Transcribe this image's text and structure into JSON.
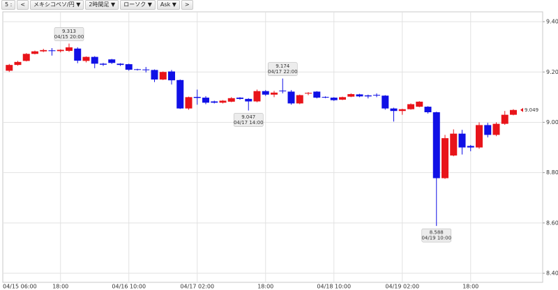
{
  "toolbar": {
    "items": [
      "5 :",
      "<",
      "メキシコペソ/円 ▼",
      "2時間足 ▼",
      "ローソク ▼",
      "Ask ▼",
      ">"
    ]
  },
  "chart_data": {
    "type": "candlestick",
    "categories": [
      "04/15 06:00",
      null,
      null,
      null,
      null,
      null,
      "18:00",
      null,
      null,
      null,
      null,
      null,
      null,
      null,
      "04/16 10:00",
      null,
      null,
      null,
      null,
      null,
      null,
      null,
      "04/17 02:00",
      null,
      null,
      null,
      null,
      null,
      null,
      null,
      "18:00",
      null,
      null,
      null,
      null,
      null,
      null,
      null,
      "04/18 10:00",
      null,
      null,
      null,
      null,
      null,
      null,
      null,
      "04/19 02:00",
      null,
      null,
      null,
      null,
      null,
      null,
      null,
      "18:00",
      null,
      null,
      null,
      null,
      null
    ],
    "open": [
      9.205,
      9.228,
      9.244,
      9.272,
      9.282,
      9.286,
      9.283,
      9.284,
      9.293,
      9.244,
      9.26,
      9.233,
      9.25,
      9.233,
      9.231,
      9.211,
      9.21,
      9.208,
      9.17,
      9.202,
      9.168,
      9.055,
      9.101,
      9.098,
      9.083,
      9.078,
      9.082,
      9.098,
      9.093,
      9.083,
      9.124,
      9.11,
      9.126,
      9.122,
      9.075,
      9.114,
      9.122,
      9.101,
      9.098,
      9.09,
      9.102,
      9.111,
      9.107,
      9.109,
      9.106,
      9.055,
      9.045,
      9.052,
      9.062,
      9.062,
      9.04,
      8.778,
      8.868,
      8.955,
      8.906,
      8.9,
      8.989,
      8.95,
      8.994,
      9.03
    ],
    "high": [
      9.232,
      9.244,
      9.275,
      9.285,
      9.292,
      9.295,
      9.29,
      9.313,
      9.298,
      9.262,
      9.263,
      9.236,
      9.252,
      9.235,
      9.233,
      9.213,
      9.22,
      9.21,
      9.202,
      9.208,
      9.17,
      9.102,
      9.13,
      9.104,
      9.086,
      9.088,
      9.1,
      9.1,
      9.096,
      9.13,
      9.128,
      9.125,
      9.174,
      9.128,
      9.11,
      9.12,
      9.124,
      9.103,
      9.1,
      9.102,
      9.115,
      9.113,
      9.11,
      9.115,
      9.108,
      9.058,
      9.054,
      9.075,
      9.084,
      9.064,
      9.042,
      8.95,
      8.972,
      8.97,
      8.91,
      9.0,
      8.998,
      9.0,
      9.045,
      9.052
    ],
    "low": [
      9.2,
      9.225,
      9.242,
      9.27,
      9.279,
      9.265,
      9.278,
      9.28,
      9.235,
      9.238,
      9.215,
      9.224,
      9.232,
      9.224,
      9.205,
      9.206,
      9.198,
      9.16,
      9.168,
      9.15,
      9.053,
      9.05,
      9.07,
      9.072,
      9.075,
      9.075,
      9.08,
      9.09,
      9.047,
      9.08,
      9.105,
      9.1,
      9.115,
      9.07,
      9.072,
      9.108,
      9.095,
      9.096,
      9.085,
      9.088,
      9.1,
      9.1,
      9.095,
      9.1,
      9.05,
      9.003,
      9.03,
      9.05,
      9.06,
      9.035,
      8.588,
      8.775,
      8.865,
      8.872,
      8.885,
      8.895,
      8.94,
      8.945,
      8.99,
      9.028
    ],
    "close": [
      9.228,
      9.24,
      9.272,
      9.282,
      9.287,
      9.283,
      9.288,
      9.298,
      9.245,
      9.26,
      9.233,
      9.229,
      9.236,
      9.228,
      9.209,
      9.209,
      9.208,
      9.17,
      9.2,
      9.167,
      9.055,
      9.1,
      9.097,
      9.078,
      9.078,
      9.086,
      9.096,
      9.093,
      9.083,
      9.124,
      9.11,
      9.118,
      9.124,
      9.075,
      9.108,
      9.117,
      9.098,
      9.099,
      9.088,
      9.1,
      9.112,
      9.103,
      9.103,
      9.107,
      9.055,
      9.045,
      9.052,
      9.072,
      9.082,
      9.04,
      8.778,
      8.937,
      8.955,
      8.9,
      8.9,
      8.989,
      8.95,
      8.994,
      9.03,
      9.049
    ],
    "up_color": "#e8141a",
    "down_color": "#1010e6",
    "ylim": [
      8.364,
      9.439
    ],
    "yticks": [
      {
        "value": 8.4,
        "label": "8.400"
      },
      {
        "value": 8.6,
        "label": "8.600"
      },
      {
        "value": 8.8,
        "label": "8.800"
      },
      {
        "value": 9.0,
        "label": "9.000"
      },
      {
        "value": 9.2,
        "label": "9.200"
      },
      {
        "value": 9.4,
        "label": "9.400"
      }
    ],
    "grid": true,
    "annotations": [
      {
        "kind": "high",
        "value": 9.313,
        "time": "04/15 20:00"
      },
      {
        "kind": "low",
        "value": 9.047,
        "time": "04/17 14:00"
      },
      {
        "kind": "high",
        "value": 9.174,
        "time": "04/17 22:00"
      },
      {
        "kind": "low",
        "value": 8.588,
        "time": "04/19 10:00"
      }
    ],
    "last_price": 9.049
  }
}
